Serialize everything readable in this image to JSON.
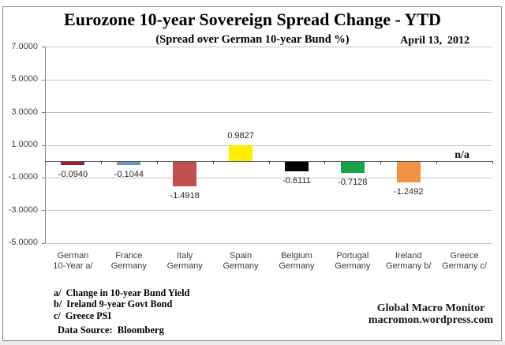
{
  "chart_data": {
    "type": "bar",
    "title": "Eurozone 10-year Sovereign Spread Change - YTD",
    "subtitle": "(Spread over German 10-year Bund %)",
    "date_label": "April 13,  2012",
    "categories": [
      [
        "German",
        "10-Year a/"
      ],
      [
        "France",
        "Germany"
      ],
      [
        "Italy",
        "Germany"
      ],
      [
        "Spain",
        "Germany"
      ],
      [
        "Belgium",
        "Germany"
      ],
      [
        "Portugal",
        "Germany"
      ],
      [
        "Ireland",
        "Germany b/"
      ],
      [
        "Greece",
        "Germany c/"
      ]
    ],
    "values": [
      -0.094,
      -0.1044,
      -1.4918,
      0.9827,
      -0.6111,
      -0.7128,
      -1.2492,
      null
    ],
    "value_labels": [
      "-0.0940",
      "-0.1044",
      "-1.4918",
      "0.9827",
      "-0.6111",
      "-0.7128",
      "-1.2492",
      "n/a"
    ],
    "bar_colors": [
      "#a02222",
      "#6899c5",
      "#c0504d",
      "#ffee00",
      "#000000",
      "#18a24c",
      "#f0923f",
      null
    ],
    "na_label": "n/a",
    "ylim": [
      -5,
      7
    ],
    "ytick_values": [
      7,
      5,
      3,
      1,
      -1,
      -3,
      -5
    ],
    "ytick_labels": [
      "7.0000",
      "5.0000",
      "3.0000",
      "1.0000",
      "-1.0000",
      "-3.0000",
      "-5.0000"
    ],
    "grid": true,
    "legend": false
  },
  "footnotes": {
    "a": "a/  Change in 10-year Bund Yield",
    "b": "b/  Ireland 9-year Govt Bond",
    "c": "c/  Greece PSI",
    "source": "Data Source:  Bloomberg"
  },
  "credit": {
    "line1": "Global Macro Monitor",
    "line2": "macromon.wordpress.com"
  }
}
